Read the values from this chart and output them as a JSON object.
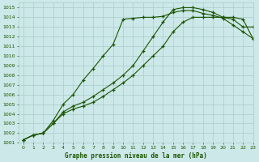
{
  "title": "Graphe pression niveau de la mer (hPa)",
  "bg_color": "#cce8e8",
  "grid_color": "#aacccc",
  "line_color": "#1a5500",
  "xlim": [
    -0.5,
    23
  ],
  "ylim": [
    1001,
    1015.5
  ],
  "xticks": [
    0,
    1,
    2,
    3,
    4,
    5,
    6,
    7,
    8,
    9,
    10,
    11,
    12,
    13,
    14,
    15,
    16,
    17,
    18,
    19,
    20,
    21,
    22,
    23
  ],
  "yticks": [
    1001,
    1002,
    1003,
    1004,
    1005,
    1006,
    1007,
    1008,
    1009,
    1010,
    1011,
    1012,
    1013,
    1014,
    1015
  ],
  "line1_x": [
    0,
    1,
    2,
    3,
    4,
    5,
    6,
    7,
    8,
    9,
    10,
    11,
    12,
    13,
    14,
    15,
    16,
    17,
    18,
    19,
    20,
    21,
    22,
    23
  ],
  "line1_y": [
    1001.3,
    1001.8,
    1002.0,
    1003.3,
    1005.0,
    1006.0,
    1007.5,
    1008.7,
    1010.0,
    1011.2,
    1013.8,
    1013.9,
    1014.0,
    1014.0,
    1014.1,
    1014.5,
    1014.7,
    1014.7,
    1014.4,
    1014.2,
    1013.9,
    1013.2,
    1012.5,
    1011.8
  ],
  "line2_x": [
    0,
    1,
    2,
    3,
    4,
    5,
    6,
    7,
    8,
    9,
    10,
    11,
    12,
    13,
    14,
    15,
    16,
    17,
    18,
    19,
    20,
    21,
    22,
    23
  ],
  "line2_y": [
    1001.3,
    1001.8,
    1002.0,
    1003.0,
    1004.2,
    1004.8,
    1005.2,
    1005.8,
    1006.5,
    1007.2,
    1008.0,
    1009.0,
    1010.5,
    1012.0,
    1013.5,
    1014.8,
    1015.0,
    1015.0,
    1014.8,
    1014.5,
    1014.0,
    1013.8,
    1013.0,
    1013.0
  ],
  "line3_x": [
    0,
    1,
    2,
    3,
    4,
    5,
    6,
    7,
    8,
    9,
    10,
    11,
    12,
    13,
    14,
    15,
    16,
    17,
    18,
    19,
    20,
    21,
    22,
    23
  ],
  "line3_y": [
    1001.3,
    1001.8,
    1002.0,
    1003.0,
    1004.0,
    1004.5,
    1004.8,
    1005.2,
    1005.8,
    1006.5,
    1007.2,
    1008.0,
    1009.0,
    1010.0,
    1011.0,
    1012.5,
    1013.5,
    1014.0,
    1014.0,
    1014.0,
    1014.0,
    1014.0,
    1013.8,
    1011.8
  ]
}
